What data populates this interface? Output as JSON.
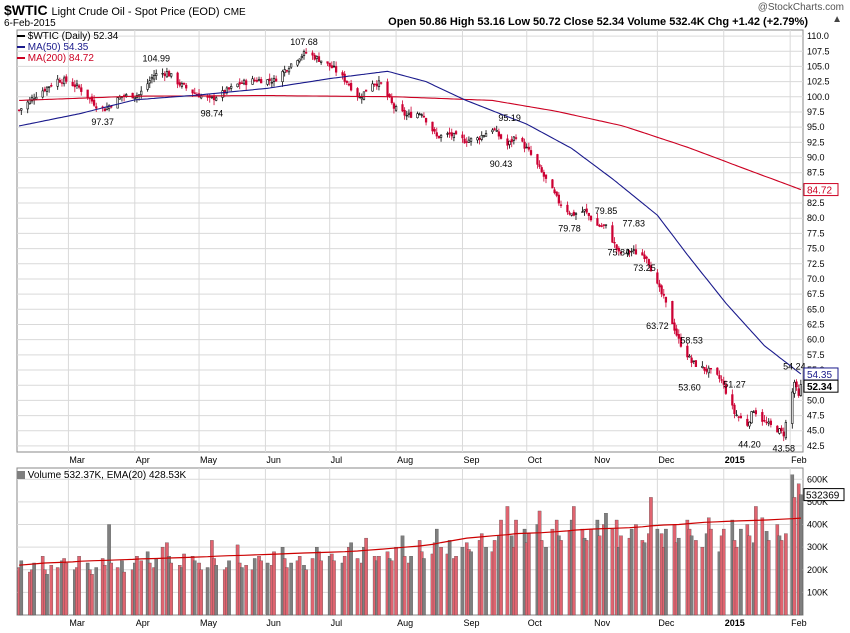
{
  "header": {
    "symbol": "$WTIC",
    "description": "Light Crude Oil - Spot Price (EOD)",
    "exchange": "CME",
    "date": "6-Feb-2015",
    "ohlc_text": "Open 50.86  High 53.16  Low 50.72  Close 52.34  Volume 532.4K  Chg +1.42 (+2.79%)",
    "watermark": "@StockCharts.com"
  },
  "legend": {
    "price": "$WTIC (Daily) 52.34",
    "ma50": "MA(50) 54.35",
    "ma200": "MA(200) 84.72",
    "volume": "Volume 532.37K, EMA(20) 428.53K"
  },
  "last_labels": {
    "ma200": "84.72",
    "ma50": "54.35",
    "close": "52.34",
    "volume": "532369"
  },
  "colors": {
    "up": "#000000",
    "down": "#cc0033",
    "ma50": "#1a1a8c",
    "ma200": "#cc0022",
    "grid": "#d9d9d9",
    "vol_up": "#7f7f7f",
    "vol_down": "#e06470",
    "vol_ema": "#cc0000"
  },
  "chart_data": [
    {
      "type": "candlestick",
      "series_name": "$WTIC (Daily)",
      "x_tick_labels": [
        "Mar",
        "Apr",
        "May",
        "Jun",
        "Jul",
        "Aug",
        "Sep",
        "Oct",
        "Nov",
        "Dec",
        "2015",
        "Feb"
      ],
      "y_tick_labels": [
        "42.5",
        "45.0",
        "47.5",
        "50.0",
        "52.5",
        "55.0",
        "57.5",
        "60.0",
        "62.5",
        "65.0",
        "67.5",
        "70.0",
        "72.5",
        "75.0",
        "77.5",
        "80.0",
        "82.5",
        "85.0",
        "87.5",
        "90.0",
        "92.5",
        "95.0",
        "97.5",
        "100.0",
        "102.5",
        "105.0",
        "107.5",
        "110.0"
      ],
      "ylim": [
        41.5,
        111
      ],
      "price_anchors": [
        [
          "2014-02-06",
          97.8
        ],
        [
          "2014-02-14",
          100.3
        ],
        [
          "2014-02-24",
          102.8
        ],
        [
          "2014-02-28",
          102.6
        ],
        [
          "2014-03-06",
          101.5
        ],
        [
          "2014-03-14",
          98.6
        ],
        [
          "2014-03-18",
          98.0
        ],
        [
          "2014-03-26",
          100.1
        ],
        [
          "2014-04-03",
          100.3
        ],
        [
          "2014-04-10",
          103.6
        ],
        [
          "2014-04-16",
          104.0
        ],
        [
          "2014-04-22",
          102.1
        ],
        [
          "2014-04-28",
          100.8
        ],
        [
          "2014-05-06",
          99.5
        ],
        [
          "2014-05-12",
          100.6
        ],
        [
          "2014-05-20",
          102.2
        ],
        [
          "2014-05-28",
          102.8
        ],
        [
          "2014-06-05",
          102.7
        ],
        [
          "2014-06-10",
          104.4
        ],
        [
          "2014-06-16",
          106.4
        ],
        [
          "2014-06-20",
          107.3
        ],
        [
          "2014-06-27",
          106.0
        ],
        [
          "2014-07-03",
          104.6
        ],
        [
          "2014-07-09",
          102.5
        ],
        [
          "2014-07-15",
          99.8
        ],
        [
          "2014-07-21",
          102.4
        ],
        [
          "2014-07-25",
          102.1
        ],
        [
          "2014-07-31",
          98.2
        ],
        [
          "2014-08-06",
          96.9
        ],
        [
          "2014-08-13",
          97.4
        ],
        [
          "2014-08-20",
          93.4
        ],
        [
          "2014-08-26",
          93.8
        ],
        [
          "2014-09-02",
          92.8
        ],
        [
          "2014-09-08",
          93.1
        ],
        [
          "2014-09-15",
          94.8
        ],
        [
          "2014-09-22",
          92.0
        ],
        [
          "2014-09-26",
          93.6
        ],
        [
          "2014-10-02",
          91.0
        ],
        [
          "2014-10-08",
          87.5
        ],
        [
          "2014-10-16",
          82.7
        ],
        [
          "2014-10-22",
          80.6
        ],
        [
          "2014-10-28",
          81.2
        ],
        [
          "2014-11-03",
          78.8
        ],
        [
          "2014-11-07",
          78.6
        ],
        [
          "2014-11-13",
          74.2
        ],
        [
          "2014-11-19",
          74.6
        ],
        [
          "2014-11-26",
          73.7
        ],
        [
          "2014-12-01",
          68.9
        ],
        [
          "2014-12-04",
          66.8
        ],
        [
          "2014-12-11",
          59.9
        ],
        [
          "2014-12-17",
          56.3
        ],
        [
          "2014-12-22",
          55.3
        ],
        [
          "2014-12-26",
          54.7
        ],
        [
          "2014-12-31",
          53.3
        ],
        [
          "2015-01-06",
          47.9
        ],
        [
          "2015-01-12",
          46.1
        ],
        [
          "2015-01-15",
          48.5
        ],
        [
          "2015-01-20",
          46.4
        ],
        [
          "2015-01-26",
          45.2
        ],
        [
          "2015-01-29",
          44.5
        ],
        [
          "2015-02-03",
          53.0
        ],
        [
          "2015-02-05",
          50.5
        ],
        [
          "2015-02-06",
          52.3
        ]
      ],
      "annotations": [
        {
          "date": "2014-03-17",
          "price": 97.37,
          "label": "97.37",
          "position": "below"
        },
        {
          "date": "2014-04-11",
          "price": 104.99,
          "label": "104.99",
          "position": "above"
        },
        {
          "date": "2014-05-07",
          "price": 98.74,
          "label": "98.74",
          "position": "below"
        },
        {
          "date": "2014-06-19",
          "price": 107.68,
          "label": "107.68",
          "position": "above"
        },
        {
          "date": "2014-09-23",
          "price": 95.19,
          "label": "95.19",
          "position": "above"
        },
        {
          "date": "2014-09-19",
          "price": 90.43,
          "label": "90.43",
          "position": "below"
        },
        {
          "date": "2014-10-21",
          "price": 79.78,
          "label": "79.78",
          "position": "below"
        },
        {
          "date": "2014-11-07",
          "price": 79.85,
          "label": "79.85",
          "position": "above"
        },
        {
          "date": "2014-11-20",
          "price": 77.83,
          "label": "77.83",
          "position": "above"
        },
        {
          "date": "2014-11-13",
          "price": 75.84,
          "label": "75.84",
          "position": "below"
        },
        {
          "date": "2014-11-25",
          "price": 73.25,
          "label": "73.25",
          "position": "below"
        },
        {
          "date": "2014-12-01",
          "price": 63.72,
          "label": "63.72",
          "position": "below"
        },
        {
          "date": "2014-12-17",
          "price": 58.53,
          "label": "58.53",
          "position": "above"
        },
        {
          "date": "2014-12-16",
          "price": 53.6,
          "label": "53.60",
          "position": "below"
        },
        {
          "date": "2015-01-06",
          "price": 51.27,
          "label": "51.27",
          "position": "above"
        },
        {
          "date": "2015-01-13",
          "price": 44.2,
          "label": "44.20",
          "position": "below"
        },
        {
          "date": "2015-01-29",
          "price": 43.58,
          "label": "43.58",
          "position": "below"
        },
        {
          "date": "2015-02-03",
          "price": 54.24,
          "label": "54.24",
          "position": "above"
        }
      ],
      "ma50_anchors": [
        [
          "2014-02-06",
          95.2
        ],
        [
          "2014-03-06",
          97.2
        ],
        [
          "2014-04-01",
          99.5
        ],
        [
          "2014-05-01",
          100.3
        ],
        [
          "2014-06-02",
          101.4
        ],
        [
          "2014-07-01",
          103.0
        ],
        [
          "2014-07-28",
          104.2
        ],
        [
          "2014-08-15",
          102.5
        ],
        [
          "2014-09-02",
          99.5
        ],
        [
          "2014-10-01",
          95.5
        ],
        [
          "2014-10-22",
          91.5
        ],
        [
          "2014-11-10",
          86.5
        ],
        [
          "2014-12-01",
          80.5
        ],
        [
          "2014-12-15",
          74.0
        ],
        [
          "2015-01-02",
          66.0
        ],
        [
          "2015-01-20",
          59.0
        ],
        [
          "2015-02-06",
          54.35
        ]
      ],
      "ma200_anchors": [
        [
          "2014-02-06",
          99.4
        ],
        [
          "2014-04-01",
          100.1
        ],
        [
          "2014-06-02",
          100.2
        ],
        [
          "2014-08-01",
          100.0
        ],
        [
          "2014-09-15",
          99.4
        ],
        [
          "2014-10-15",
          97.6
        ],
        [
          "2014-11-15",
          95.2
        ],
        [
          "2014-12-15",
          91.7
        ],
        [
          "2015-01-15",
          87.6
        ],
        [
          "2015-02-06",
          84.72
        ]
      ]
    },
    {
      "type": "bar",
      "series_name": "Volume",
      "y_tick_labels": [
        "100K",
        "200K",
        "300K",
        "400K",
        "500K",
        "600K"
      ],
      "ylim": [
        0,
        650000
      ],
      "volume_levels": [
        210,
        240,
        190,
        200,
        230,
        260,
        200,
        180,
        220,
        210,
        240,
        250,
        230,
        200,
        210,
        260,
        230,
        200,
        180,
        210,
        250,
        220,
        400,
        230,
        210,
        240,
        190,
        200,
        230,
        260,
        240,
        280,
        230,
        210,
        250,
        300,
        320,
        260,
        230,
        220,
        210,
        270,
        260,
        240,
        230,
        200,
        210,
        330,
        250,
        220,
        200,
        210,
        240,
        310,
        230,
        210,
        220,
        200,
        250,
        260,
        240,
        230,
        220,
        280,
        300,
        250,
        210,
        230,
        240,
        260,
        220,
        200,
        250,
        300,
        280,
        240,
        260,
        270,
        240,
        230,
        260,
        300,
        320,
        250,
        230,
        300,
        340,
        260,
        240,
        260,
        280,
        250,
        240,
        300,
        350,
        260,
        230,
        260,
        330,
        280,
        250,
        270,
        320,
        380,
        300,
        270,
        330,
        250,
        260,
        300,
        320,
        290,
        280,
        330,
        360,
        300,
        280,
        330,
        350,
        420,
        480,
        350,
        300,
        420,
        380,
        320,
        360,
        400,
        460,
        330,
        300,
        380,
        420,
        350,
        330,
        370,
        420,
        480,
        380,
        340,
        330,
        380,
        420,
        350,
        400,
        450,
        380,
        420,
        300,
        350,
        340,
        380,
        400,
        330,
        320,
        360,
        520,
        380,
        360,
        300,
        380,
        400,
        320,
        340,
        420,
        380,
        350,
        330,
        300,
        360,
        430,
        380,
        280,
        350,
        380,
        420,
        330,
        300,
        380,
        400,
        350,
        320,
        480,
        430,
        370,
        330,
        400,
        350,
        330,
        360,
        620,
        520,
        580,
        532
      ],
      "ema_levels": [
        220,
        225,
        230,
        232,
        235,
        238,
        240,
        242,
        244,
        246,
        248,
        250,
        252,
        254,
        256,
        258,
        260,
        262,
        264,
        266,
        268,
        270,
        272,
        274,
        276,
        278,
        280,
        283,
        286,
        290,
        295,
        300,
        305,
        312,
        320,
        330,
        340,
        345,
        350,
        355,
        360,
        362,
        364,
        368,
        372,
        376,
        380,
        382,
        384,
        386,
        390,
        394,
        398,
        400,
        405,
        410,
        412,
        414,
        416,
        418,
        420,
        423,
        426,
        428.53
      ]
    }
  ]
}
